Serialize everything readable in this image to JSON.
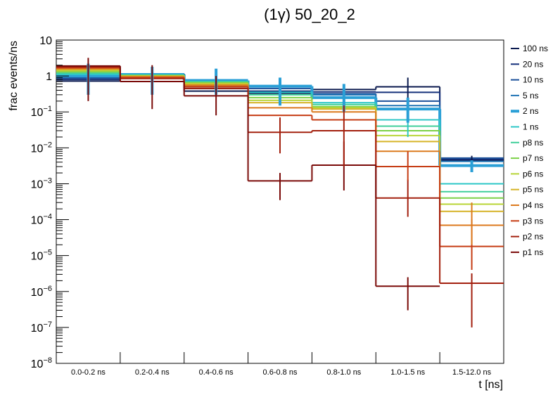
{
  "chart_data": {
    "type": "line",
    "title": "(1γ) 50_20_2",
    "xlabel": "t [ns]",
    "ylabel": "frac events/ns",
    "yscale": "log",
    "ylim": [
      1e-08,
      10
    ],
    "y_ticks": [
      {
        "value": 1e-08,
        "base": "10",
        "exp": "−8"
      },
      {
        "value": 1e-07,
        "base": "10",
        "exp": "−7"
      },
      {
        "value": 1e-06,
        "base": "10",
        "exp": "−6"
      },
      {
        "value": 1e-05,
        "base": "10",
        "exp": "−5"
      },
      {
        "value": 0.0001,
        "base": "10",
        "exp": "−4"
      },
      {
        "value": 0.001,
        "base": "10",
        "exp": "−3"
      },
      {
        "value": 0.01,
        "base": "10",
        "exp": "−2"
      },
      {
        "value": 0.1,
        "base": "10",
        "exp": "−1"
      },
      {
        "value": 1,
        "base": "1",
        "exp": ""
      },
      {
        "value": 10,
        "base": "10",
        "exp": ""
      }
    ],
    "categories": [
      "0.0-0.2 ns",
      "0.2-0.4 ns",
      "0.4-0.6 ns",
      "0.6-0.8 ns",
      "0.8-1.0 ns",
      "1.0-1.5 ns",
      "1.5-12.0 ns"
    ],
    "legend_position": "right",
    "highlighted_series": "2 ns",
    "series": [
      {
        "name": "100 ns",
        "color": "#0b1a4f",
        "values": [
          0.72,
          1.15,
          0.38,
          0.33,
          0.42,
          0.5,
          0.0045
        ]
      },
      {
        "name": "20 ns",
        "color": "#15307a",
        "values": [
          0.8,
          1.13,
          0.45,
          0.38,
          0.36,
          0.35,
          0.0048
        ]
      },
      {
        "name": "10 ns",
        "color": "#1a4f9a",
        "values": [
          0.88,
          1.1,
          0.55,
          0.45,
          0.32,
          0.2,
          0.0052
        ]
      },
      {
        "name": "5 ns",
        "color": "#1f73b4",
        "values": [
          0.95,
          1.1,
          0.65,
          0.5,
          0.3,
          0.15,
          0.0042
        ]
      },
      {
        "name": "2 ns",
        "color": "#2a9fd6",
        "values": [
          1.0,
          1.1,
          0.75,
          0.52,
          0.25,
          0.12,
          0.0032
        ]
      },
      {
        "name": "1 ns",
        "color": "#2ec7c7",
        "values": [
          1.1,
          1.08,
          0.7,
          0.35,
          0.18,
          0.06,
          0.001
        ]
      },
      {
        "name": "p8 ns",
        "color": "#3fcf9a",
        "values": [
          1.2,
          1.05,
          0.68,
          0.3,
          0.16,
          0.04,
          0.0006
        ]
      },
      {
        "name": "p7 ns",
        "color": "#7cd147",
        "values": [
          1.3,
          1.03,
          0.65,
          0.25,
          0.14,
          0.03,
          0.0004
        ]
      },
      {
        "name": "p6 ns",
        "color": "#b8d436",
        "values": [
          1.4,
          1.0,
          0.62,
          0.21,
          0.13,
          0.022,
          0.00027
        ]
      },
      {
        "name": "p5 ns",
        "color": "#d6b428",
        "values": [
          1.5,
          0.98,
          0.58,
          0.18,
          0.12,
          0.015,
          0.00017
        ]
      },
      {
        "name": "p4 ns",
        "color": "#dc7a1e",
        "values": [
          1.6,
          0.95,
          0.55,
          0.13,
          0.1,
          0.008,
          7e-05
        ]
      },
      {
        "name": "p3 ns",
        "color": "#c63c14",
        "values": [
          1.7,
          0.9,
          0.5,
          0.08,
          0.06,
          0.003,
          1.8e-05
        ]
      },
      {
        "name": "p2 ns",
        "color": "#a3200e",
        "values": [
          1.8,
          0.85,
          0.45,
          0.027,
          0.03,
          0.0004,
          1.7e-06
        ]
      },
      {
        "name": "p1 ns",
        "color": "#7a0a08",
        "values": [
          1.9,
          0.7,
          0.28,
          0.0012,
          0.0033,
          1.4e-06,
          null
        ]
      }
    ],
    "error_bars": [
      {
        "series": "100 ns",
        "category": "1.0-1.5 ns",
        "low": 0.2,
        "high": 0.9
      },
      {
        "series": "100 ns",
        "category": "1.5-12.0 ns",
        "low": 0.0025,
        "high": 0.006
      },
      {
        "series": "1 ns",
        "category": "1.0-1.5 ns",
        "low": 0.02,
        "high": 0.12
      },
      {
        "series": "2 ns",
        "category": "0.0-0.2 ns",
        "low": 0.3,
        "high": 2.2
      },
      {
        "series": "2 ns",
        "category": "0.2-0.4 ns",
        "low": 0.3,
        "high": 1.8
      },
      {
        "series": "2 ns",
        "category": "0.4-0.6 ns",
        "low": 0.3,
        "high": 1.6
      },
      {
        "series": "2 ns",
        "category": "0.6-0.8 ns",
        "low": 0.15,
        "high": 0.9
      },
      {
        "series": "2 ns",
        "category": "0.8-1.0 ns",
        "low": 0.1,
        "high": 0.6
      },
      {
        "series": "2 ns",
        "category": "1.0-1.5 ns",
        "low": 0.05,
        "high": 0.25
      },
      {
        "series": "2 ns",
        "category": "1.5-12.0 ns",
        "low": 0.0021,
        "high": 0.0045
      },
      {
        "series": "p1 ns",
        "category": "0.0-0.2 ns",
        "low": 0.2,
        "high": 3.2
      },
      {
        "series": "p1 ns",
        "category": "0.2-0.4 ns",
        "low": 0.12,
        "high": 2.0
      },
      {
        "series": "p1 ns",
        "category": "0.4-0.6 ns",
        "low": 0.08,
        "high": 1.0
      },
      {
        "series": "p1 ns",
        "category": "0.6-0.8 ns",
        "low": 0.00035,
        "high": 0.002
      },
      {
        "series": "p1 ns",
        "category": "0.8-1.0 ns",
        "low": 0.00065,
        "high": 0.015
      },
      {
        "series": "p1 ns",
        "category": "1.0-1.5 ns",
        "low": 3e-07,
        "high": 2.5e-06
      },
      {
        "series": "p2 ns",
        "category": "0.6-0.8 ns",
        "low": 0.007,
        "high": 0.07
      },
      {
        "series": "p2 ns",
        "category": "0.8-1.0 ns",
        "low": 0.003,
        "high": 0.15
      },
      {
        "series": "p2 ns",
        "category": "1.0-1.5 ns",
        "low": 0.00012,
        "high": 0.0013
      },
      {
        "series": "p2 ns",
        "category": "1.5-12.0 ns",
        "low": 1e-07,
        "high": 3.2e-06
      },
      {
        "series": "p3 ns",
        "category": "1.0-1.5 ns",
        "low": 0.0012,
        "high": 0.008
      },
      {
        "series": "p3 ns",
        "category": "1.5-12.0 ns",
        "low": 4e-06,
        "high": 0.0001
      },
      {
        "series": "p4 ns",
        "category": "1.5-12.0 ns",
        "low": 2e-05,
        "high": 0.0003
      }
    ]
  }
}
